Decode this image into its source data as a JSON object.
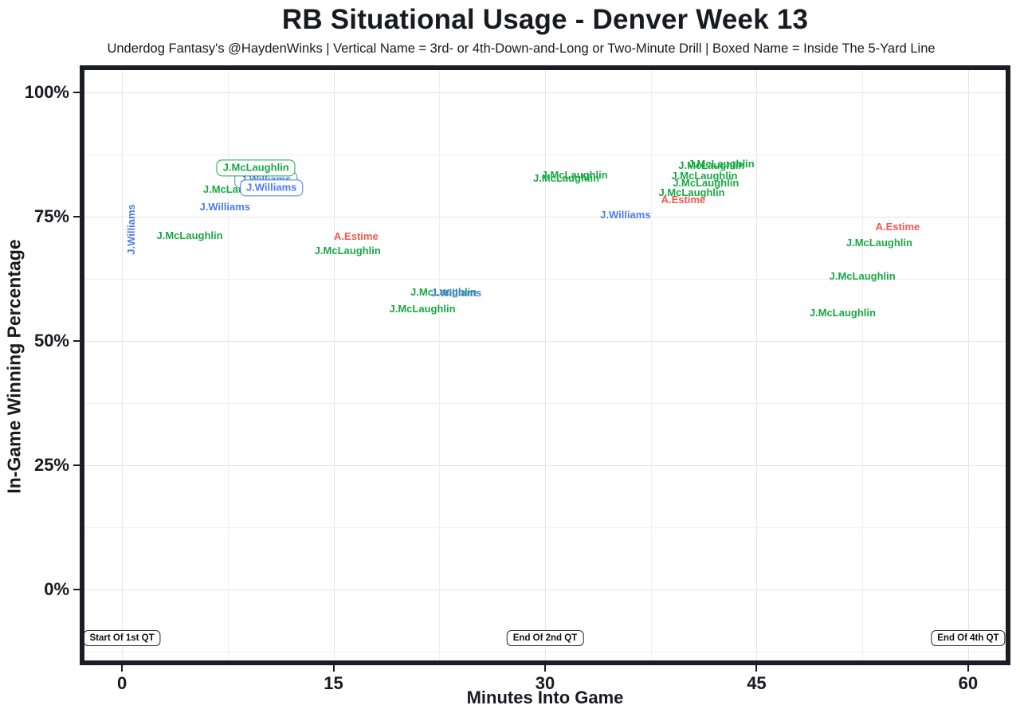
{
  "header": {
    "title": "RB Situational Usage - Denver Week 13",
    "subtitle": "Underdog Fantasy's @HaydenWinks | Vertical Name = 3rd- or 4th-Down-and-Long or Two-Minute Drill | Boxed Name = Inside The 5-Yard Line"
  },
  "chart_data": {
    "type": "scatter",
    "title": "RB Situational Usage - Denver Week 13",
    "subtitle": "Underdog Fantasy's @HaydenWinks | Vertical Name = 3rd- or 4th-Down-and-Long or Two-Minute Drill | Boxed Name = Inside The 5-Yard Line",
    "xlabel": "Minutes Into Game",
    "ylabel": "In-Game Winning Percentage",
    "xlim": [
      -3,
      63
    ],
    "ylim": [
      -15.3,
      105.5
    ],
    "grid": true,
    "legend_position": "none",
    "x_ticks": {
      "values": [
        0,
        15,
        30,
        45,
        60
      ],
      "labels": [
        "0",
        "15",
        "30",
        "45",
        "60"
      ]
    },
    "y_ticks": {
      "values": [
        0,
        25,
        50,
        75,
        100
      ],
      "labels": [
        "0%",
        "25%",
        "50%",
        "75%",
        "100%"
      ]
    },
    "x_minor": [
      7.5,
      22.5,
      37.5,
      52.5
    ],
    "y_minor": [
      -12.5,
      12.5,
      37.5,
      62.5,
      87.5
    ],
    "palette": {
      "green": "#17a943",
      "blue": "#4d7bf3",
      "red": "#f4564f"
    },
    "points": [
      {
        "name": "J.Williams",
        "x": 0.7,
        "y": 72.4,
        "color": "blue",
        "vertical": true
      },
      {
        "name": "J.McLaughlin",
        "x": 4.8,
        "y": 71.2,
        "color": "green"
      },
      {
        "name": "J.Williams",
        "x": 7.3,
        "y": 76.9,
        "color": "blue"
      },
      {
        "name": "J.McLaughlin",
        "x": 8.1,
        "y": 80.4,
        "color": "green"
      },
      {
        "name": "J.Williams",
        "x": 10.2,
        "y": 82.4,
        "color": "blue",
        "boxed": true
      },
      {
        "name": "J.McLaughlin",
        "x": 9.5,
        "y": 84.8,
        "color": "green",
        "boxed": true
      },
      {
        "name": "J.Williams",
        "x": 10.6,
        "y": 80.8,
        "color": "blue",
        "boxed": true
      },
      {
        "name": "A.Estime",
        "x": 16.6,
        "y": 71.0,
        "color": "red"
      },
      {
        "name": "J.McLaughlin",
        "x": 16.0,
        "y": 68.1,
        "color": "green"
      },
      {
        "name": "J.McLaughlin",
        "x": 22.8,
        "y": 59.8,
        "color": "green"
      },
      {
        "name": "J.Williams",
        "x": 23.7,
        "y": 59.6,
        "color": "blue"
      },
      {
        "name": "J.McLaughlin",
        "x": 21.3,
        "y": 56.4,
        "color": "green"
      },
      {
        "name": "J.McLaughlin",
        "x": 31.5,
        "y": 82.7,
        "color": "green"
      },
      {
        "name": "J.McLaughlin",
        "x": 32.1,
        "y": 83.4,
        "color": "green"
      },
      {
        "name": "J.Williams",
        "x": 35.7,
        "y": 75.3,
        "color": "blue"
      },
      {
        "name": "J.McLaughlin",
        "x": 41.8,
        "y": 85.3,
        "color": "green"
      },
      {
        "name": "J.McLaughlin",
        "x": 42.5,
        "y": 85.6,
        "color": "green"
      },
      {
        "name": "J.McLaughlin",
        "x": 41.3,
        "y": 83.2,
        "color": "green"
      },
      {
        "name": "J.McLaughlin",
        "x": 41.4,
        "y": 81.7,
        "color": "green"
      },
      {
        "name": "J.McLaughlin",
        "x": 40.4,
        "y": 79.8,
        "color": "green"
      },
      {
        "name": "A.Estime",
        "x": 39.8,
        "y": 78.4,
        "color": "red"
      },
      {
        "name": "A.Estime",
        "x": 55.0,
        "y": 72.9,
        "color": "red"
      },
      {
        "name": "J.McLaughlin",
        "x": 53.7,
        "y": 69.7,
        "color": "green"
      },
      {
        "name": "J.McLaughlin",
        "x": 52.5,
        "y": 63.0,
        "color": "green"
      },
      {
        "name": "J.McLaughlin",
        "x": 51.1,
        "y": 55.6,
        "color": "green"
      }
    ],
    "annotations": [
      {
        "text": "Start Of 1st QT",
        "x": 0,
        "y": -9.8
      },
      {
        "text": "End Of 2nd QT",
        "x": 30,
        "y": -9.8
      },
      {
        "text": "End Of 4th QT",
        "x": 60,
        "y": -9.8
      }
    ]
  }
}
